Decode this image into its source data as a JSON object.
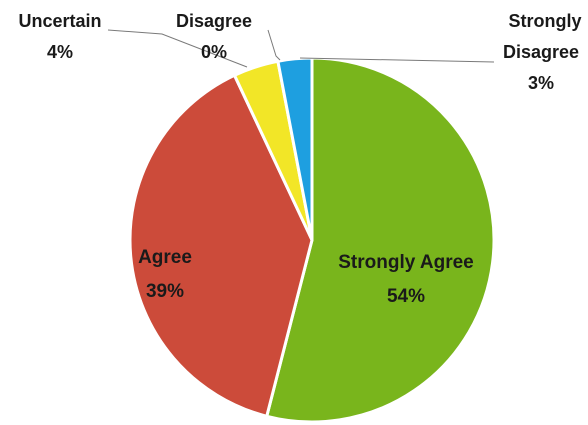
{
  "chart_data": {
    "type": "pie",
    "slices": [
      {
        "label": "Strongly Agree",
        "value": 54,
        "value_label": "54%",
        "color": "#79b51c"
      },
      {
        "label": "Agree",
        "value": 39,
        "value_label": "39%",
        "color": "#cc4b3a"
      },
      {
        "label": "Uncertain",
        "value": 4,
        "value_label": "4%",
        "color": "#f2e627"
      },
      {
        "label": "Disagree",
        "value": 0,
        "value_label": "0%",
        "color": "#9aa0a6"
      },
      {
        "label": "Strongly",
        "label_line2": "Disagree",
        "value": 3,
        "value_label": "3%",
        "color": "#1e9fe0"
      }
    ],
    "legend": "none",
    "labels": "data-labels-with-leader-lines"
  }
}
